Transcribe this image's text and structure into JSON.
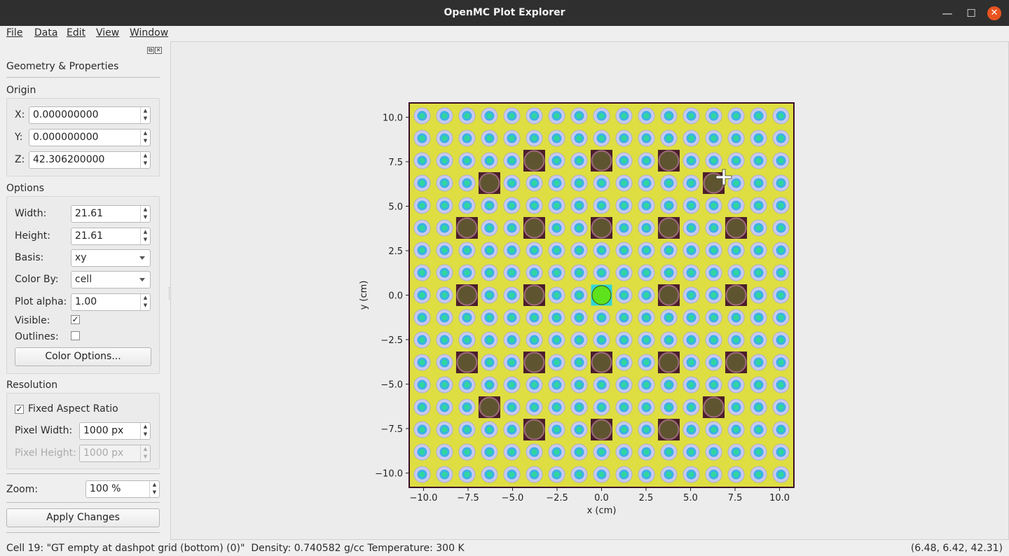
{
  "window": {
    "title": "OpenMC Plot Explorer"
  },
  "menu": [
    "File",
    "Data",
    "Edit",
    "View",
    "Window"
  ],
  "dock": {
    "title": "Geometry & Properties",
    "origin": {
      "label": "Origin",
      "x_label": "X:",
      "x": "0.000000000",
      "y_label": "Y:",
      "y": "0.000000000",
      "z_label": "Z:",
      "z": "42.306200000"
    },
    "options": {
      "label": "Options",
      "width_label": "Width:",
      "width": "21.61",
      "height_label": "Height:",
      "height": "21.61",
      "basis_label": "Basis:",
      "basis": "xy",
      "colorby_label": "Color By:",
      "colorby": "cell",
      "alpha_label": "Plot alpha:",
      "alpha": "1.00",
      "visible_label": "Visible:",
      "visible": true,
      "outlines_label": "Outlines:",
      "outlines": false,
      "color_options_button": "Color Options..."
    },
    "resolution": {
      "label": "Resolution",
      "fixed_aspect_label": "Fixed Aspect Ratio",
      "fixed_aspect": true,
      "pixel_width_label": "Pixel Width:",
      "pixel_width": "1000 px",
      "pixel_height_label": "Pixel Height:",
      "pixel_height": "1000 px"
    },
    "zoom_label": "Zoom:",
    "zoom": "100 %",
    "apply_button": "Apply Changes"
  },
  "chart_data": {
    "type": "heatmap",
    "description": "17x17 lattice geometry plot",
    "xlabel": "x (cm)",
    "ylabel": "y (cm)",
    "xlim": [
      -10.805,
      10.805
    ],
    "ylim": [
      -10.805,
      10.805
    ],
    "xticks": [
      "−10.0",
      "−7.5",
      "−5.0",
      "−2.5",
      "0.0",
      "2.5",
      "5.0",
      "7.5",
      "10.0"
    ],
    "xtick_values": [
      -10.0,
      -7.5,
      -5.0,
      -2.5,
      0.0,
      2.5,
      5.0,
      7.5,
      10.0
    ],
    "yticks": [
      "10.0",
      "7.5",
      "5.0",
      "2.5",
      "0.0",
      "−2.5",
      "−5.0",
      "−7.5",
      "−10.0"
    ],
    "ytick_values": [
      10.0,
      7.5,
      5.0,
      2.5,
      0.0,
      -2.5,
      -5.0,
      -7.5,
      -10.0
    ],
    "pitch": 1.26,
    "lattice_size": 17,
    "guide_tubes": [
      [
        2,
        5
      ],
      [
        2,
        8
      ],
      [
        2,
        11
      ],
      [
        3,
        3
      ],
      [
        3,
        13
      ],
      [
        5,
        2
      ],
      [
        5,
        5
      ],
      [
        5,
        8
      ],
      [
        5,
        11
      ],
      [
        5,
        14
      ],
      [
        8,
        2
      ],
      [
        8,
        5
      ],
      [
        8,
        11
      ],
      [
        8,
        14
      ],
      [
        11,
        2
      ],
      [
        11,
        5
      ],
      [
        11,
        8
      ],
      [
        11,
        11
      ],
      [
        11,
        14
      ],
      [
        13,
        3
      ],
      [
        13,
        13
      ],
      [
        14,
        5
      ],
      [
        14,
        8
      ],
      [
        14,
        11
      ]
    ],
    "instrument_tube": [
      8,
      8
    ],
    "colors": {
      "background": "#dede42",
      "guide_tube_box": "#4a1f2a",
      "guide_tube": "#5e5530",
      "guide_ring": "#a0697f",
      "fuel_clad": "#c8c8f0",
      "fuel_gap": "#3db1e6",
      "fuel": "#2fd69d",
      "instrument_box": "#2fd6d6",
      "instrument": "#5ee21c",
      "frame": "#3a0d25"
    }
  },
  "status": {
    "cell_info": "Cell 19: \"GT empty at dashpot grid (bottom) (0)\"  Density: 0.740582 g/cc Temperature: 300 K",
    "coords": "(6.48, 6.42, 42.31)"
  }
}
